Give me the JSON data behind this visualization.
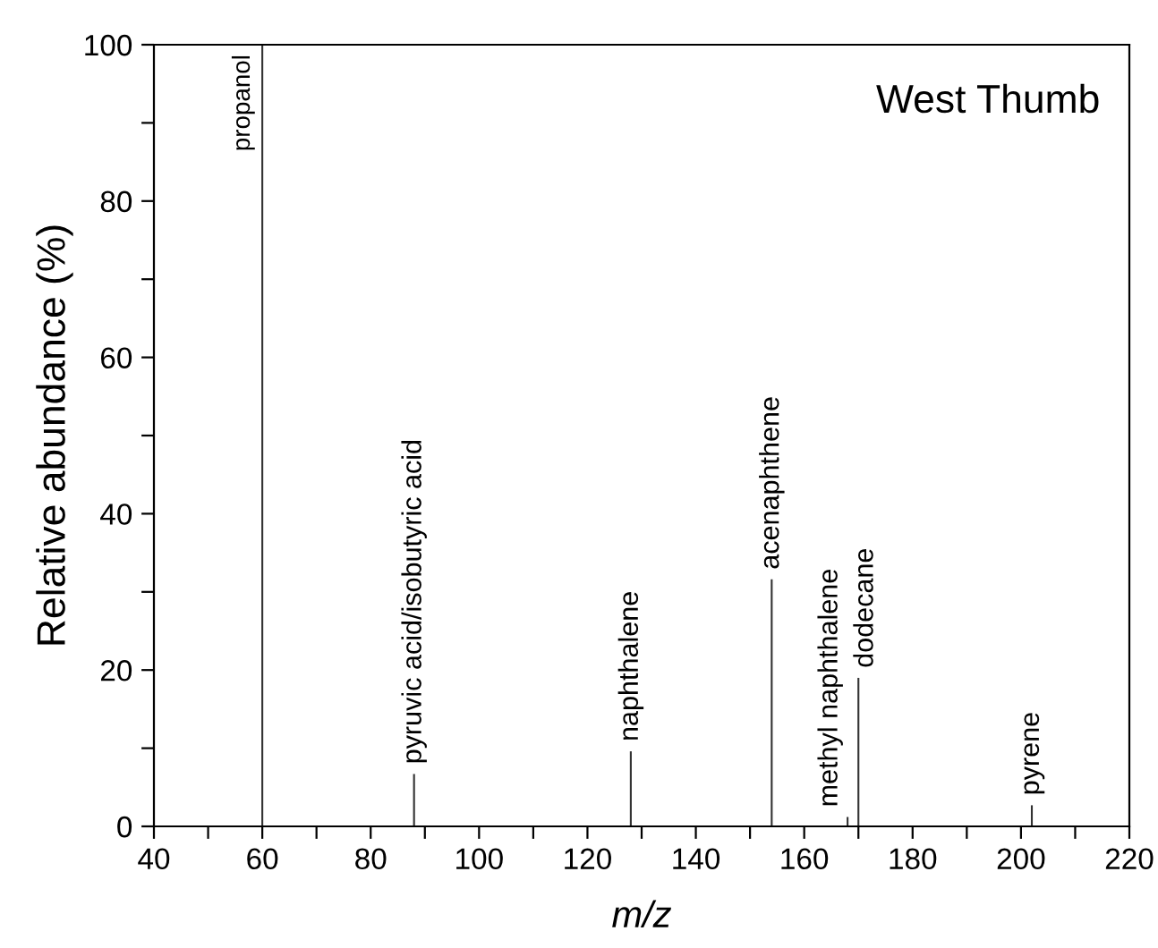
{
  "chart_data": {
    "type": "bar",
    "title": "West Thumb",
    "xlabel": "m/z",
    "ylabel": "Relative abundance (%)",
    "x": [
      60,
      88,
      128,
      154,
      168,
      170,
      202
    ],
    "values": [
      100,
      6.7,
      9.6,
      31.6,
      1.2,
      19,
      2.7
    ],
    "color": "#333333",
    "xlim": [
      40,
      220
    ],
    "xticks": [
      40,
      {
        "value": 50,
        "label": null
      },
      60,
      {
        "value": 70,
        "label": null
      },
      80,
      {
        "value": 90,
        "label": null
      },
      100,
      {
        "value": 110,
        "label": null
      },
      120,
      {
        "value": 130,
        "label": null
      },
      140,
      {
        "value": 150,
        "label": null
      },
      160,
      {
        "value": 170,
        "label": null
      },
      180,
      {
        "value": 190,
        "label": null
      },
      200,
      {
        "value": 210,
        "label": null
      },
      220
    ],
    "ylim": [
      0,
      100
    ],
    "yticks": [
      0,
      {
        "value": 10,
        "label": null
      },
      20,
      {
        "value": 30,
        "label": null
      },
      40,
      {
        "value": 50,
        "label": null
      },
      60,
      {
        "value": 70,
        "label": null
      },
      80,
      {
        "value": 90,
        "label": null
      },
      100
    ],
    "grid": false,
    "annotations": [
      {
        "text": "propanol",
        "x": 60,
        "y": 100
      },
      {
        "text": "pyruvic acid/isobutyric acid",
        "x": 88,
        "y": 6.7
      },
      {
        "text": "naphthalene",
        "x": 128,
        "y": 9.6
      },
      {
        "text": "acenaphthene",
        "x": 154,
        "y": 31.6
      },
      {
        "text": "methyl naphthalene",
        "x": 168,
        "y": 1.2
      },
      {
        "text": "dodecane",
        "x": 170,
        "y": 19
      },
      {
        "text": "pyrene",
        "x": 202,
        "y": 2.7
      }
    ]
  }
}
